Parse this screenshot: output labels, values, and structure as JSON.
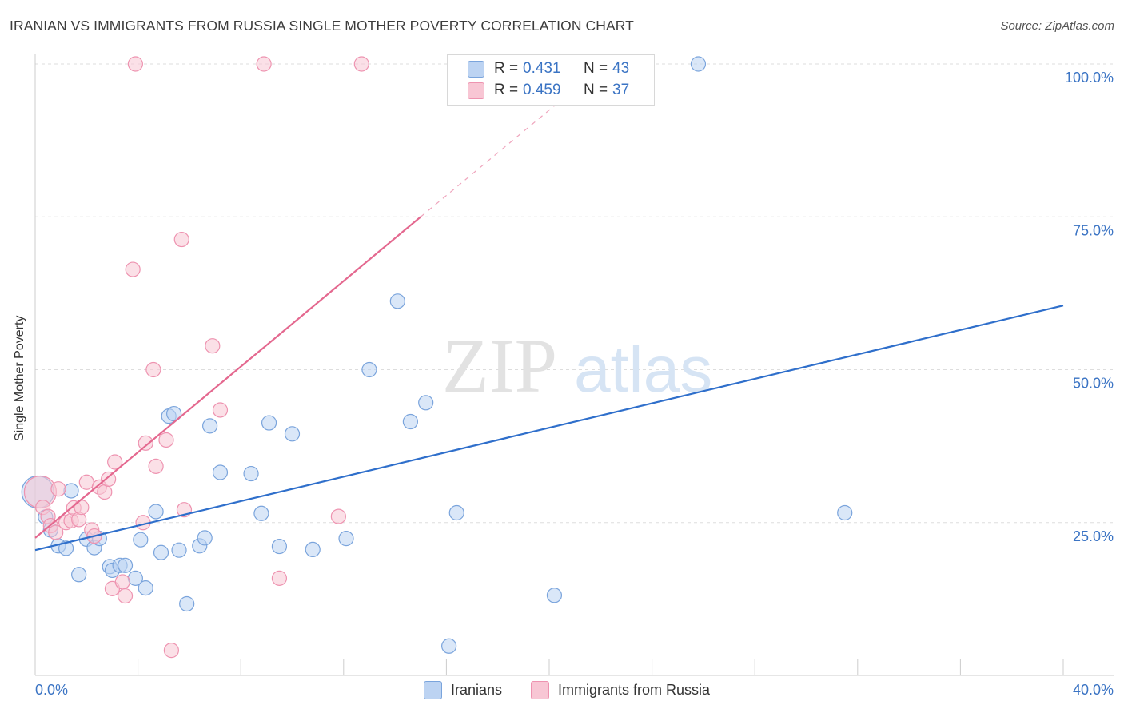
{
  "title": "IRANIAN VS IMMIGRANTS FROM RUSSIA SINGLE MOTHER POVERTY CORRELATION CHART",
  "source": "Source: ZipAtlas.com",
  "watermark": {
    "part1": "ZIP",
    "part2": "atlas"
  },
  "colors": {
    "iranians_fill": "#bcd3f2",
    "iranians_stroke": "#7aa4dc",
    "iranians_line": "#2f6fcb",
    "russia_fill": "#f8c6d4",
    "russia_stroke": "#ee93b0",
    "russia_line": "#e4688f",
    "tick_label": "#3b74c4",
    "grid": "#dddddd"
  },
  "legend_top": {
    "rows": [
      {
        "r_label": "R =",
        "r_value": "0.431",
        "n_label": "N =",
        "n_value": "43"
      },
      {
        "r_label": "R =",
        "r_value": "0.459",
        "n_label": "N =",
        "n_value": "37"
      }
    ]
  },
  "legend_bottom": {
    "items": [
      "Iranians",
      "Immigrants from Russia"
    ]
  },
  "chart_data": {
    "type": "scatter",
    "xlabel": "",
    "ylabel": "Single Mother Poverty",
    "xlim": [
      0,
      40
    ],
    "ylim": [
      0,
      100
    ],
    "x_tick_labels": [
      "0.0%",
      "40.0%"
    ],
    "y_tick_labels": [
      "25.0%",
      "50.0%",
      "75.0%",
      "100.0%"
    ],
    "y_ticks": [
      25,
      50,
      75,
      100
    ],
    "grid": true,
    "legend_position": "top-center",
    "series": [
      {
        "name": "Iranians",
        "r": 0.431,
        "n": 43,
        "trend": {
          "x": [
            0,
            40
          ],
          "y": [
            20.5,
            60.5
          ]
        },
        "points": [
          [
            0.1,
            30.0
          ],
          [
            0.4,
            25.9
          ],
          [
            0.6,
            23.8
          ],
          [
            0.9,
            21.2
          ],
          [
            1.2,
            20.8
          ],
          [
            1.4,
            30.2
          ],
          [
            1.7,
            16.5
          ],
          [
            2.0,
            22.3
          ],
          [
            2.3,
            20.9
          ],
          [
            2.5,
            22.4
          ],
          [
            2.9,
            17.8
          ],
          [
            3.0,
            17.2
          ],
          [
            3.3,
            18.0
          ],
          [
            3.5,
            18.0
          ],
          [
            3.9,
            15.9
          ],
          [
            4.1,
            22.2
          ],
          [
            4.3,
            14.3
          ],
          [
            4.7,
            26.8
          ],
          [
            4.9,
            20.1
          ],
          [
            5.2,
            42.4
          ],
          [
            5.4,
            42.8
          ],
          [
            5.6,
            20.5
          ],
          [
            5.9,
            11.7
          ],
          [
            6.4,
            21.2
          ],
          [
            6.6,
            22.5
          ],
          [
            6.8,
            40.8
          ],
          [
            7.2,
            33.2
          ],
          [
            8.8,
            26.5
          ],
          [
            8.4,
            33.0
          ],
          [
            9.1,
            41.3
          ],
          [
            9.5,
            21.1
          ],
          [
            10.0,
            39.5
          ],
          [
            10.8,
            20.6
          ],
          [
            12.1,
            22.4
          ],
          [
            13.0,
            50.0
          ],
          [
            14.1,
            61.2
          ],
          [
            14.6,
            41.5
          ],
          [
            15.2,
            44.6
          ],
          [
            16.1,
            4.8
          ],
          [
            16.4,
            26.6
          ],
          [
            20.2,
            13.1
          ],
          [
            25.8,
            100.0
          ],
          [
            31.5,
            26.6
          ]
        ]
      },
      {
        "name": "Immigrants from Russia",
        "r": 0.459,
        "n": 37,
        "trend": {
          "x": [
            0,
            15
          ],
          "y": [
            22.5,
            75.0
          ]
        },
        "trend_dashed": {
          "x": [
            15,
            20.5
          ],
          "y": [
            75.0,
            94.2
          ]
        },
        "points": [
          [
            0.2,
            30.0
          ],
          [
            0.3,
            27.5
          ],
          [
            0.5,
            26.0
          ],
          [
            0.6,
            24.5
          ],
          [
            0.8,
            23.4
          ],
          [
            0.9,
            30.5
          ],
          [
            1.2,
            25.0
          ],
          [
            1.4,
            25.3
          ],
          [
            1.5,
            27.4
          ],
          [
            1.7,
            25.5
          ],
          [
            1.8,
            27.5
          ],
          [
            2.0,
            31.6
          ],
          [
            2.2,
            23.8
          ],
          [
            2.3,
            22.8
          ],
          [
            2.5,
            30.8
          ],
          [
            2.7,
            30.0
          ],
          [
            2.85,
            32.1
          ],
          [
            3.0,
            14.2
          ],
          [
            3.1,
            34.9
          ],
          [
            3.4,
            15.3
          ],
          [
            3.5,
            13.0
          ],
          [
            3.9,
            100.0
          ],
          [
            3.8,
            66.4
          ],
          [
            4.2,
            25.0
          ],
          [
            4.3,
            38.0
          ],
          [
            4.6,
            50.0
          ],
          [
            4.7,
            34.2
          ],
          [
            5.1,
            38.5
          ],
          [
            5.3,
            4.1
          ],
          [
            5.7,
            71.3
          ],
          [
            5.8,
            27.1
          ],
          [
            6.9,
            53.9
          ],
          [
            7.2,
            43.4
          ],
          [
            8.9,
            100.0
          ],
          [
            9.5,
            15.9
          ],
          [
            11.8,
            26.0
          ],
          [
            12.7,
            100.0
          ]
        ]
      }
    ]
  }
}
